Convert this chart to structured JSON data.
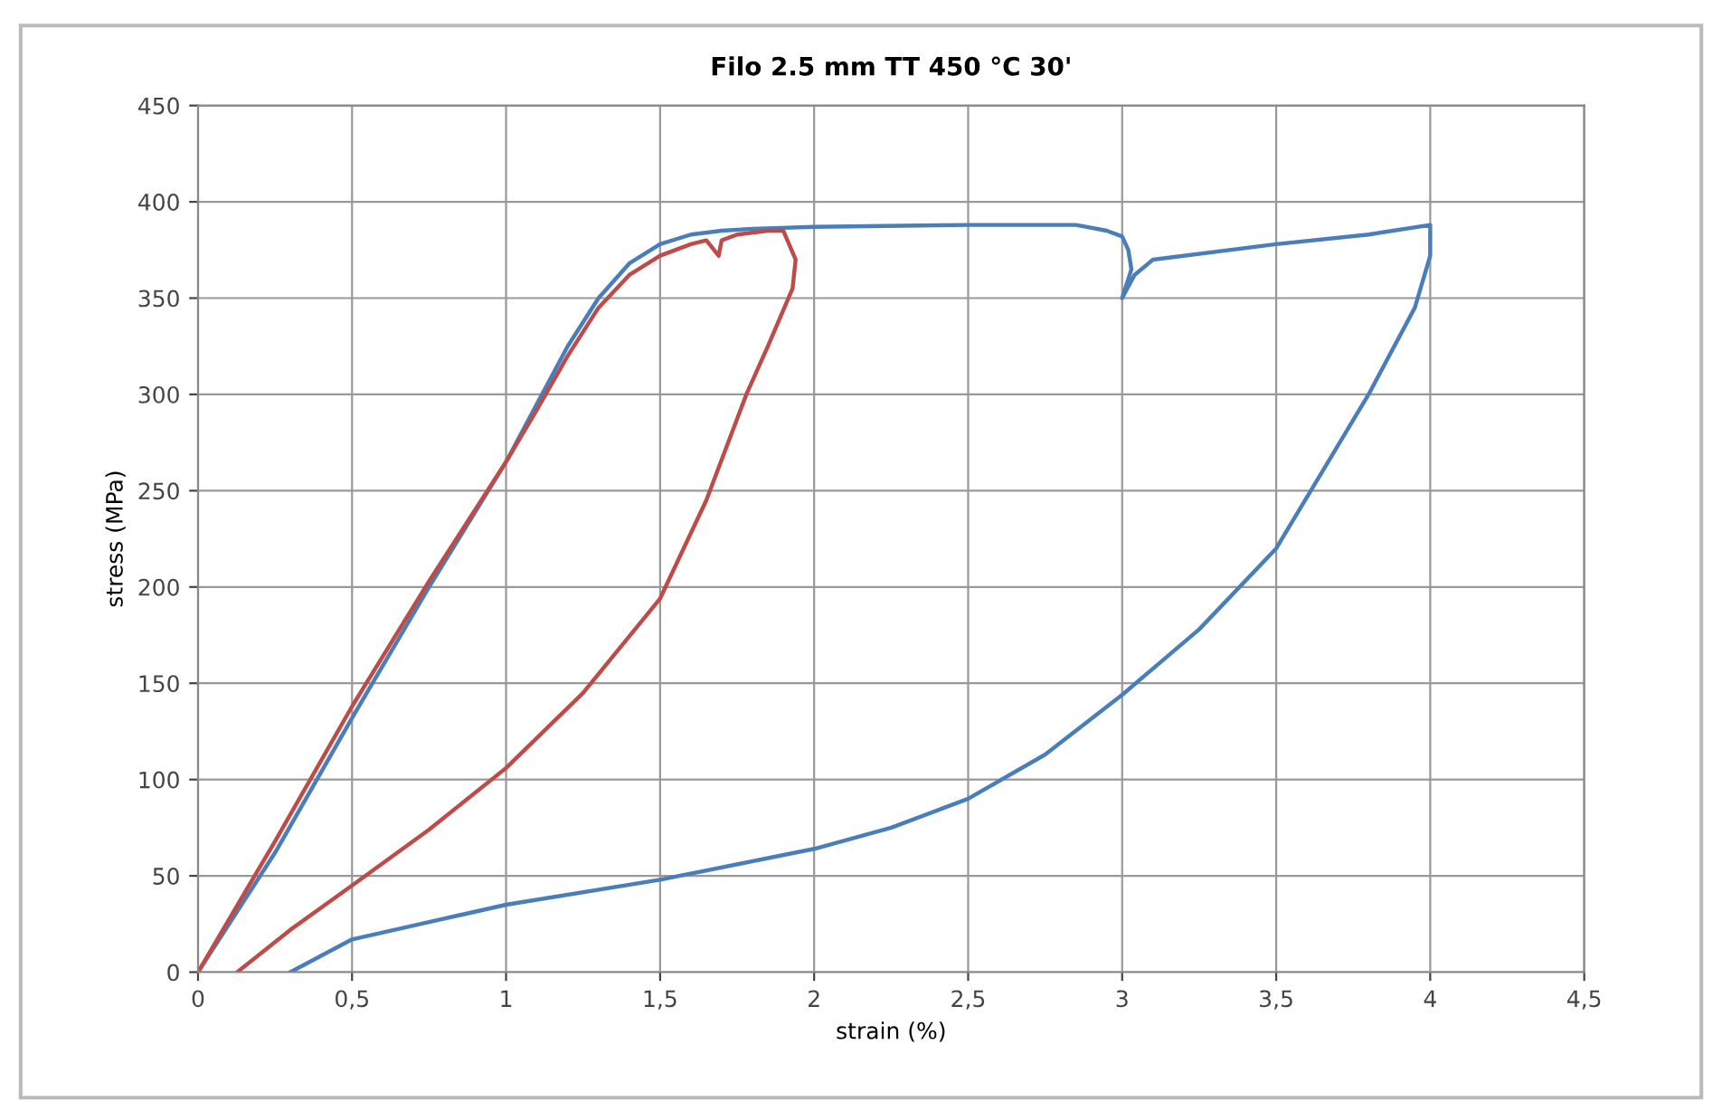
{
  "chart_data": {
    "type": "line",
    "title": "Filo 2.5 mm TT 450 °C 30'",
    "xlabel": "strain (%)",
    "ylabel": "stress (MPa)",
    "series": [
      {
        "color": "#4a7ebb",
        "x": [
          0,
          0.25,
          0.5,
          0.75,
          1.0,
          1.1,
          1.2,
          1.3,
          1.4,
          1.5,
          1.6,
          1.7,
          1.8,
          2.0,
          2.5,
          2.85,
          2.95,
          3.0,
          3.02,
          3.03,
          3.0,
          3.04,
          3.1,
          3.5,
          3.8,
          4.0,
          4.0,
          3.95,
          3.8,
          3.5,
          3.25,
          3.0,
          2.75,
          2.5,
          2.25,
          2.0,
          1.5,
          1.0,
          0.75,
          0.5,
          0.3
        ],
        "values": [
          0,
          62,
          132,
          200,
          265,
          295,
          325,
          350,
          368,
          378,
          383,
          385,
          386,
          387,
          388,
          388,
          385,
          382,
          375,
          365,
          350,
          362,
          370,
          378,
          383,
          388,
          372,
          345,
          300,
          220,
          178,
          144,
          113,
          90,
          75,
          64,
          48,
          35,
          26,
          17,
          0
        ]
      },
      {
        "color": "#be4b48",
        "x": [
          0,
          0.25,
          0.5,
          0.75,
          1.0,
          1.1,
          1.2,
          1.3,
          1.4,
          1.5,
          1.6,
          1.65,
          1.69,
          1.7,
          1.75,
          1.85,
          1.9,
          1.94,
          1.93,
          1.85,
          1.78,
          1.65,
          1.5,
          1.25,
          1.0,
          0.75,
          0.5,
          0.3,
          0.127
        ],
        "values": [
          0,
          68,
          138,
          203,
          265,
          292,
          320,
          345,
          362,
          372,
          378,
          380,
          372,
          380,
          383,
          385,
          385,
          370,
          355,
          325,
          300,
          245,
          194,
          145,
          106,
          74,
          45,
          22,
          0
        ]
      }
    ],
    "xlim": [
      0,
      4.5
    ],
    "xticks": [
      0,
      {
        "value": 0.5,
        "label": "0,5"
      },
      1,
      {
        "value": 1.5,
        "label": "1,5"
      },
      2,
      {
        "value": 2.5,
        "label": "2,5"
      },
      3,
      {
        "value": 3.5,
        "label": "3,5"
      },
      4,
      {
        "value": 4.5,
        "label": "4,5"
      }
    ],
    "ylim": [
      0,
      450
    ],
    "yticks": [
      0,
      50,
      100,
      150,
      200,
      250,
      300,
      350,
      400,
      450
    ],
    "grid": true,
    "line_style": "solid",
    "marker": "none"
  }
}
